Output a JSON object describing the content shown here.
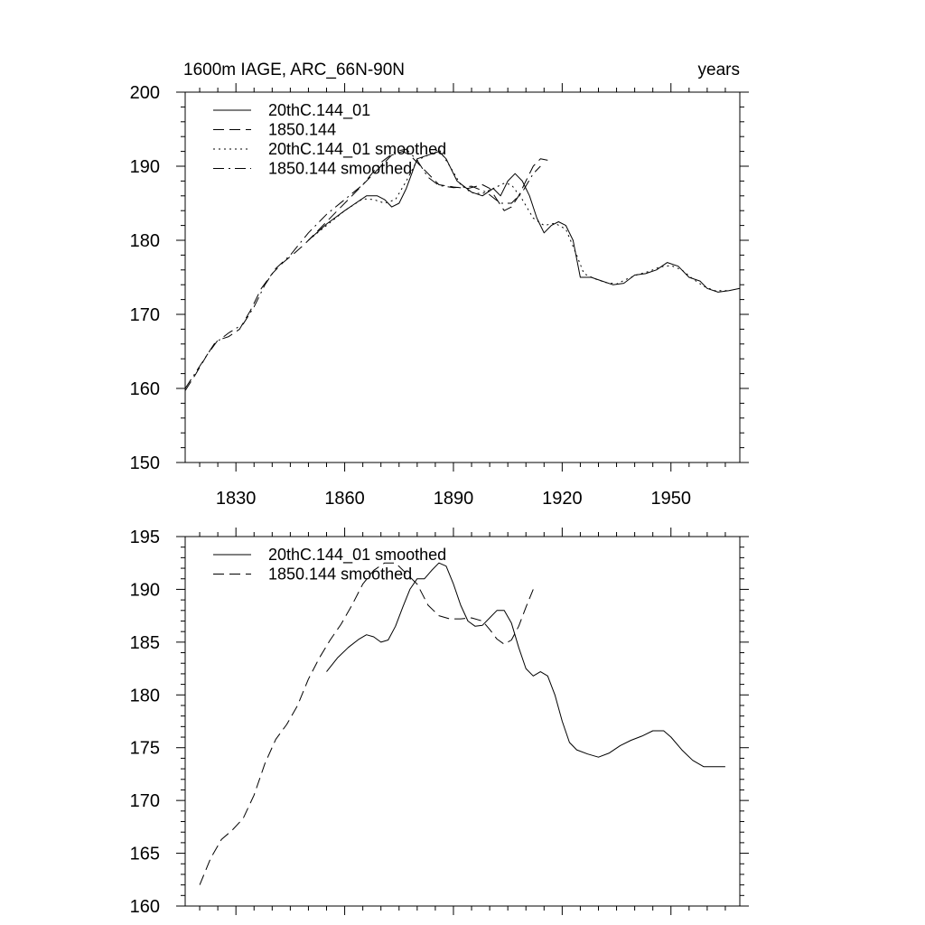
{
  "chart_data": [
    {
      "type": "line",
      "title": "1600m IAGE, ARC_66N-90N",
      "title_right": "years",
      "xlabel": "",
      "ylabel": "",
      "xlim": [
        1816,
        1969
      ],
      "ylim": [
        150,
        200
      ],
      "xticks": [
        1830,
        1860,
        1890,
        1920,
        1950
      ],
      "yticks": [
        150,
        160,
        170,
        180,
        190,
        200
      ],
      "grid": false,
      "legend_position": "top-left",
      "series": [
        {
          "name": "20thC.144_01",
          "style": "solid",
          "points": [
            [
              1850,
              180
            ],
            [
              1855,
              182.2
            ],
            [
              1860,
              184
            ],
            [
              1863,
              185
            ],
            [
              1866,
              186
            ],
            [
              1869,
              186
            ],
            [
              1871,
              185.5
            ],
            [
              1873,
              184.5
            ],
            [
              1875,
              185
            ],
            [
              1877,
              187
            ],
            [
              1880,
              191
            ],
            [
              1883,
              191.5
            ],
            [
              1886,
              192
            ],
            [
              1888,
              191
            ],
            [
              1891,
              188
            ],
            [
              1895,
              186.5
            ],
            [
              1898,
              186
            ],
            [
              1901,
              187
            ],
            [
              1903,
              186
            ],
            [
              1905,
              188
            ],
            [
              1907,
              189
            ],
            [
              1909,
              188
            ],
            [
              1911,
              186
            ],
            [
              1913,
              183
            ],
            [
              1915,
              181
            ],
            [
              1917,
              182
            ],
            [
              1919,
              182.5
            ],
            [
              1921,
              182
            ],
            [
              1923,
              180
            ],
            [
              1925,
              175
            ],
            [
              1928,
              175
            ],
            [
              1931,
              174.5
            ],
            [
              1934,
              174
            ],
            [
              1937,
              174.2
            ],
            [
              1940,
              175.3
            ],
            [
              1943,
              175.5
            ],
            [
              1946,
              176
            ],
            [
              1949,
              177
            ],
            [
              1952,
              176.5
            ],
            [
              1955,
              175
            ],
            [
              1958,
              174.5
            ],
            [
              1960,
              173.5
            ],
            [
              1963,
              173
            ],
            [
              1966,
              173.2
            ],
            [
              1969,
              173.5
            ]
          ]
        },
        {
          "name": "1850.144",
          "style": "dashed",
          "points": [
            [
              1816,
              159.7
            ],
            [
              1819,
              162
            ],
            [
              1822,
              164.5
            ],
            [
              1825,
              166.5
            ],
            [
              1828,
              167
            ],
            [
              1831,
              168
            ],
            [
              1834,
              170.5
            ],
            [
              1837,
              173.5
            ],
            [
              1840,
              175.5
            ],
            [
              1843,
              177
            ],
            [
              1846,
              178.2
            ],
            [
              1849,
              179.5
            ],
            [
              1852,
              181
            ],
            [
              1855,
              182.5
            ],
            [
              1858,
              184
            ],
            [
              1861,
              185.5
            ],
            [
              1864,
              187
            ],
            [
              1867,
              188.5
            ],
            [
              1870,
              190
            ],
            [
              1873,
              191.5
            ],
            [
              1876,
              192
            ],
            [
              1878,
              191.5
            ],
            [
              1880,
              190.5
            ],
            [
              1883,
              189
            ],
            [
              1886,
              187.5
            ],
            [
              1890,
              187.2
            ],
            [
              1894,
              187
            ],
            [
              1898,
              187.5
            ],
            [
              1900,
              187
            ],
            [
              1902,
              185.5
            ],
            [
              1904,
              184
            ],
            [
              1906,
              184.5
            ],
            [
              1908,
              186
            ],
            [
              1910,
              188
            ],
            [
              1912,
              190
            ],
            [
              1914,
              191
            ],
            [
              1916,
              190.8
            ]
          ]
        },
        {
          "name": "20thC.144_01 smoothed",
          "style": "dotted",
          "points": [
            [
              1850,
              180
            ],
            [
              1855,
              182
            ],
            [
              1860,
              184
            ],
            [
              1865,
              185.6
            ],
            [
              1868,
              185.5
            ],
            [
              1871,
              185
            ],
            [
              1874,
              185.5
            ],
            [
              1877,
              188
            ],
            [
              1880,
              190.8
            ],
            [
              1883,
              191.5
            ],
            [
              1886,
              192.3
            ],
            [
              1889,
              190
            ],
            [
              1892,
              187.5
            ],
            [
              1895,
              186.4
            ],
            [
              1898,
              186.3
            ],
            [
              1901,
              187
            ],
            [
              1904,
              187.7
            ],
            [
              1906,
              187.5
            ],
            [
              1909,
              185.5
            ],
            [
              1912,
              183
            ],
            [
              1915,
              182
            ],
            [
              1918,
              182.3
            ],
            [
              1921,
              181.5
            ],
            [
              1924,
              178
            ],
            [
              1926,
              175.5
            ],
            [
              1929,
              174.8
            ],
            [
              1932,
              174.3
            ],
            [
              1935,
              174.1
            ],
            [
              1938,
              174.8
            ],
            [
              1941,
              175.4
            ],
            [
              1944,
              175.8
            ],
            [
              1947,
              176.4
            ],
            [
              1950,
              176.6
            ],
            [
              1953,
              176
            ],
            [
              1956,
              174.8
            ],
            [
              1959,
              173.8
            ],
            [
              1962,
              173.2
            ],
            [
              1966,
              173.2
            ]
          ]
        },
        {
          "name": "1850.144 smoothed",
          "style": "dashdot",
          "points": [
            [
              1816,
              160
            ],
            [
              1820,
              163
            ],
            [
              1824,
              166
            ],
            [
              1828,
              167.5
            ],
            [
              1832,
              168.7
            ],
            [
              1835,
              171
            ],
            [
              1838,
              174
            ],
            [
              1841,
              176.2
            ],
            [
              1845,
              178
            ],
            [
              1850,
              181
            ],
            [
              1855,
              183.5
            ],
            [
              1860,
              185.5
            ],
            [
              1865,
              187.5
            ],
            [
              1870,
              190.5
            ],
            [
              1874,
              192
            ],
            [
              1877,
              192.3
            ],
            [
              1880,
              190.8
            ],
            [
              1883,
              188.5
            ],
            [
              1886,
              187.4
            ],
            [
              1890,
              187.1
            ],
            [
              1895,
              187.3
            ],
            [
              1899,
              186.5
            ],
            [
              1903,
              185
            ],
            [
              1906,
              185
            ],
            [
              1909,
              186.5
            ],
            [
              1912,
              189
            ],
            [
              1914,
              190
            ]
          ]
        }
      ]
    },
    {
      "type": "line",
      "title": "",
      "xlabel": "",
      "ylabel": "",
      "xlim": [
        1816,
        1969
      ],
      "ylim": [
        160,
        195
      ],
      "xticks": [
        1830,
        1860,
        1890,
        1920,
        1950
      ],
      "yticks": [
        160,
        165,
        170,
        175,
        180,
        185,
        190,
        195
      ],
      "grid": false,
      "legend_position": "top-left",
      "series": [
        {
          "name": "20thC.144_01 smoothed",
          "style": "solid",
          "points": [
            [
              1855,
              182.2
            ],
            [
              1858,
              183.5
            ],
            [
              1861,
              184.5
            ],
            [
              1864,
              185.3
            ],
            [
              1866,
              185.7
            ],
            [
              1868,
              185.5
            ],
            [
              1870,
              185
            ],
            [
              1872,
              185.2
            ],
            [
              1874,
              186.5
            ],
            [
              1876,
              188.3
            ],
            [
              1878,
              190
            ],
            [
              1880,
              191
            ],
            [
              1882,
              191
            ],
            [
              1884,
              191.8
            ],
            [
              1886,
              192.5
            ],
            [
              1888,
              192.2
            ],
            [
              1890,
              190.5
            ],
            [
              1892,
              188.5
            ],
            [
              1894,
              187
            ],
            [
              1896,
              186.5
            ],
            [
              1898,
              186.6
            ],
            [
              1900,
              187.3
            ],
            [
              1902,
              188
            ],
            [
              1904,
              188
            ],
            [
              1906,
              186.8
            ],
            [
              1908,
              184.5
            ],
            [
              1910,
              182.5
            ],
            [
              1912,
              181.8
            ],
            [
              1914,
              182.2
            ],
            [
              1916,
              181.8
            ],
            [
              1918,
              180
            ],
            [
              1920,
              177.5
            ],
            [
              1922,
              175.5
            ],
            [
              1924,
              174.8
            ],
            [
              1927,
              174.4
            ],
            [
              1930,
              174.1
            ],
            [
              1933,
              174.5
            ],
            [
              1936,
              175.2
            ],
            [
              1939,
              175.7
            ],
            [
              1942,
              176.1
            ],
            [
              1945,
              176.6
            ],
            [
              1948,
              176.6
            ],
            [
              1950,
              176
            ],
            [
              1953,
              174.8
            ],
            [
              1956,
              173.8
            ],
            [
              1959,
              173.2
            ],
            [
              1962,
              173.2
            ],
            [
              1965,
              173.2
            ]
          ]
        },
        {
          "name": "1850.144 smoothed",
          "style": "dashed",
          "points": [
            [
              1820,
              162
            ],
            [
              1823,
              164.5
            ],
            [
              1826,
              166.3
            ],
            [
              1829,
              167.2
            ],
            [
              1832,
              168.3
            ],
            [
              1835,
              170.5
            ],
            [
              1838,
              173.5
            ],
            [
              1841,
              175.8
            ],
            [
              1844,
              177.2
            ],
            [
              1847,
              179
            ],
            [
              1850,
              181.5
            ],
            [
              1853,
              183.5
            ],
            [
              1856,
              185.2
            ],
            [
              1859,
              186.7
            ],
            [
              1862,
              188.5
            ],
            [
              1865,
              190.5
            ],
            [
              1868,
              191.8
            ],
            [
              1871,
              192.5
            ],
            [
              1874,
              192.5
            ],
            [
              1877,
              191.5
            ],
            [
              1880,
              190.5
            ],
            [
              1883,
              188.5
            ],
            [
              1886,
              187.5
            ],
            [
              1889,
              187.2
            ],
            [
              1892,
              187.2
            ],
            [
              1895,
              187.3
            ],
            [
              1898,
              187
            ],
            [
              1900,
              186.2
            ],
            [
              1902,
              185.3
            ],
            [
              1904,
              184.8
            ],
            [
              1906,
              185.2
            ],
            [
              1908,
              186.5
            ],
            [
              1910,
              188.3
            ],
            [
              1912,
              190
            ]
          ]
        }
      ]
    }
  ]
}
